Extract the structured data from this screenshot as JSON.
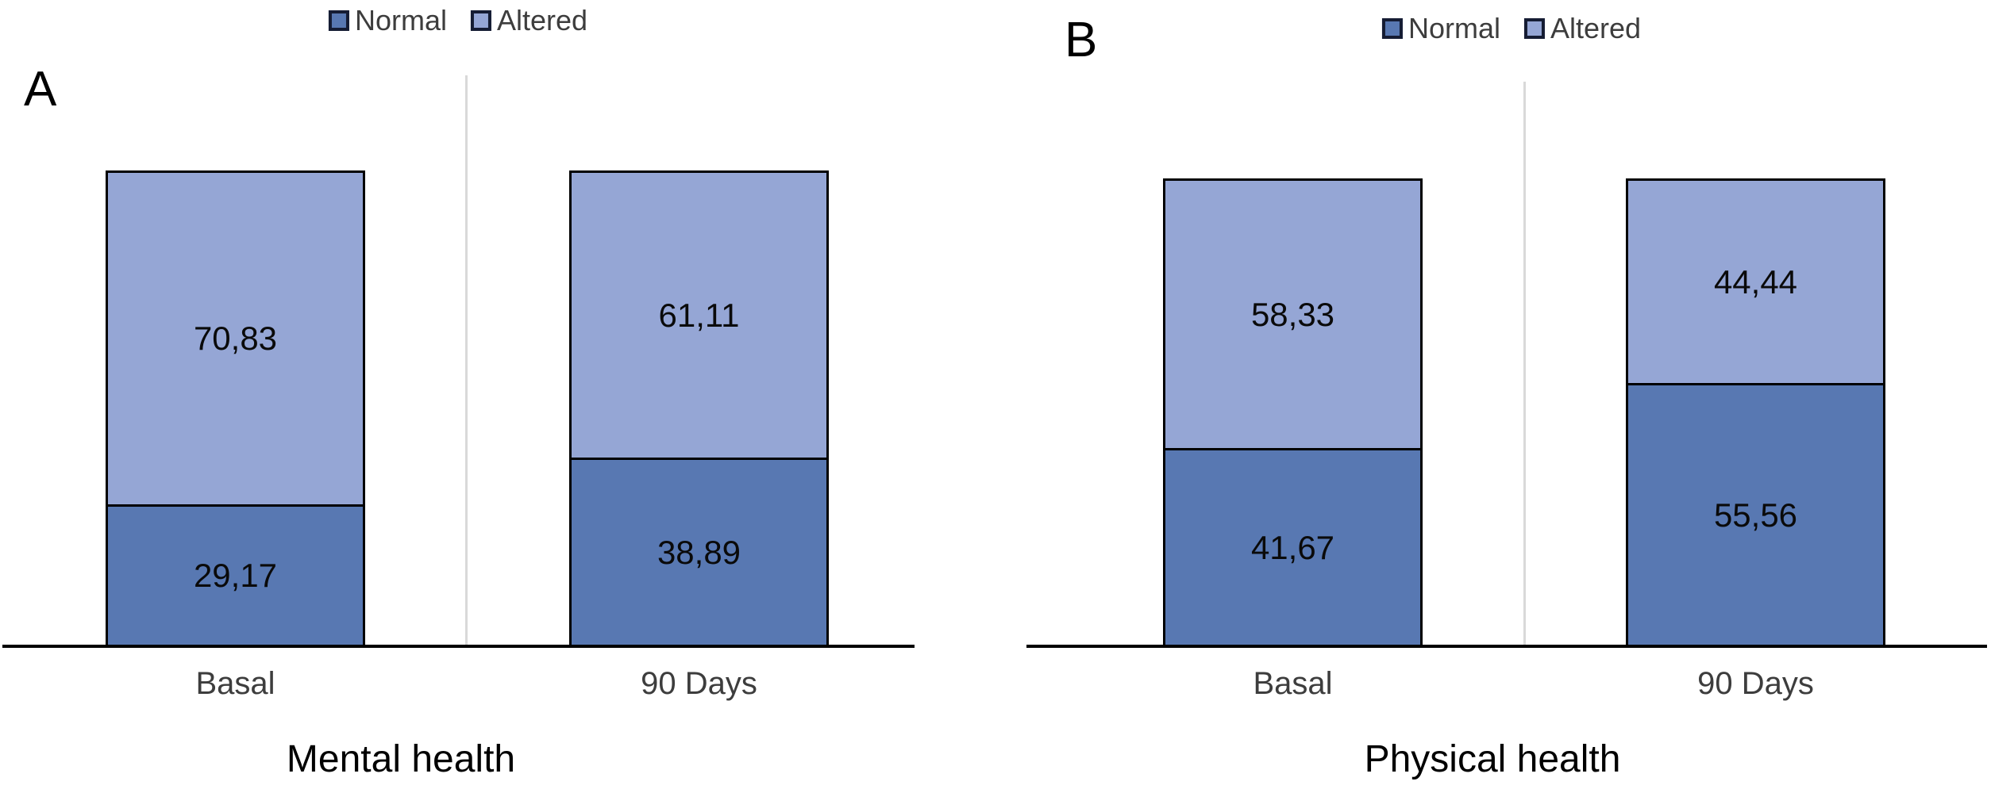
{
  "chart_data": [
    {
      "type": "bar",
      "variant": "stacked",
      "panel_label": "A",
      "title": "Mental health",
      "categories": [
        "Basal",
        "90 Days"
      ],
      "series": [
        {
          "name": "Normal",
          "values": [
            29.17,
            38.89
          ],
          "labels": [
            "29,17",
            "38,89"
          ],
          "color": "#5878B2"
        },
        {
          "name": "Altered",
          "values": [
            70.83,
            61.11
          ],
          "labels": [
            "70,83",
            "61,11"
          ],
          "color": "#95A6D5"
        }
      ],
      "stack_order_top_to_bottom": [
        "Altered",
        "Normal"
      ],
      "ylim": [
        0,
        100
      ],
      "legend_position": "top-center",
      "grid": false,
      "data_labels": "inside-center"
    },
    {
      "type": "bar",
      "variant": "stacked",
      "panel_label": "B",
      "title": "Physical health",
      "categories": [
        "Basal",
        "90 Days"
      ],
      "series": [
        {
          "name": "Normal",
          "values": [
            41.67,
            55.56
          ],
          "labels": [
            "41,67",
            "55,56"
          ],
          "color": "#5878B2"
        },
        {
          "name": "Altered",
          "values": [
            58.33,
            44.44
          ],
          "labels": [
            "58,33",
            "44,44"
          ],
          "color": "#95A6D5"
        }
      ],
      "stack_order_top_to_bottom": [
        "Altered",
        "Normal"
      ],
      "ylim": [
        0,
        100
      ],
      "legend_position": "top-center",
      "grid": false,
      "data_labels": "inside-center"
    }
  ],
  "styles": {
    "bar_border_color": "#000000",
    "axis_color": "#000000",
    "divider_color": "#d9d9d9",
    "value_label_color": "#0a0a0a",
    "category_label_color": "#3d3d3d",
    "legend_text_color": "#3d3d3d",
    "legend_swatch_border": "#151c33",
    "title_color": "#000000",
    "panel_letter_color": "#000000",
    "background": "#ffffff"
  }
}
